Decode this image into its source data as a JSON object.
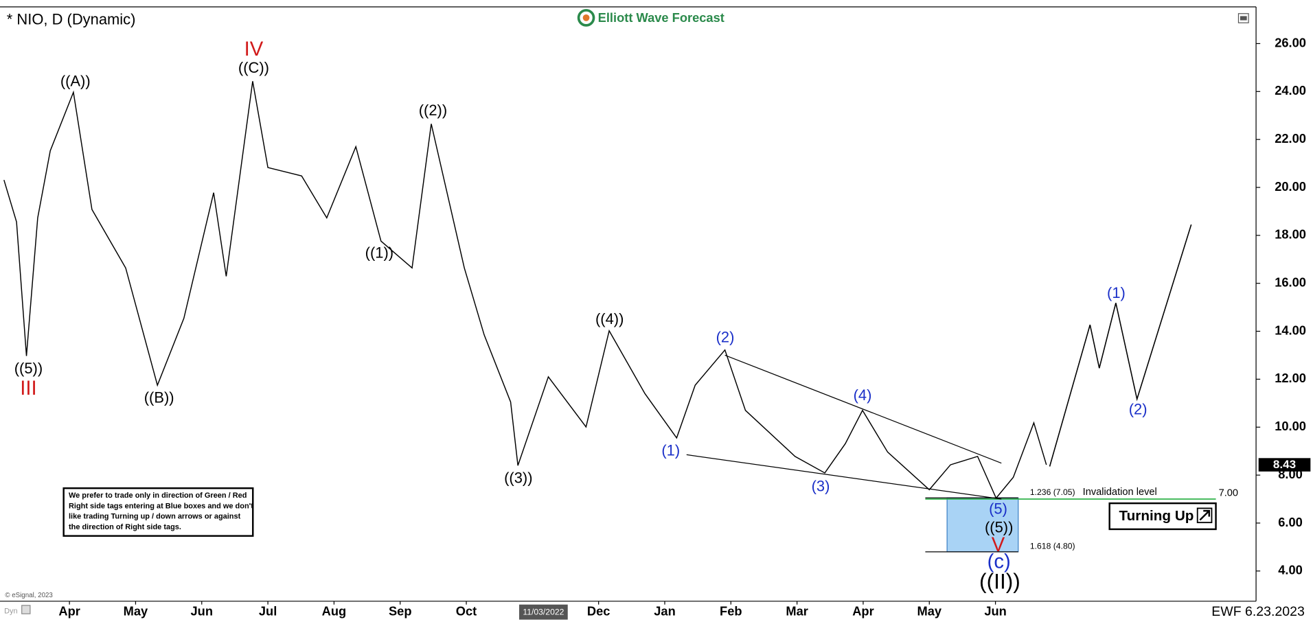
{
  "chart_data": {
    "type": "line",
    "title": "* NIO, D (Dynamic)",
    "brand": "Elliott Wave Forecast",
    "footer": "EWF 6.23.2023",
    "source": "© eSignal, 2023",
    "corner_tag": "Dyn",
    "cursor_label": "11/03/2022",
    "xlim": [
      -0.05,
      18.94
    ],
    "ylim": [
      2.74,
      27.53
    ],
    "xticks": [
      {
        "value": 1,
        "label": "Apr"
      },
      {
        "value": 2,
        "label": "May"
      },
      {
        "value": 3,
        "label": "Jun"
      },
      {
        "value": 4,
        "label": "Jul"
      },
      {
        "value": 5,
        "label": "Aug"
      },
      {
        "value": 6,
        "label": "Sep"
      },
      {
        "value": 7,
        "label": "Oct"
      },
      {
        "value": 9,
        "label": "Dec"
      },
      {
        "value": 10,
        "label": "Jan"
      },
      {
        "value": 11,
        "label": "Feb"
      },
      {
        "value": 12,
        "label": "Mar"
      },
      {
        "value": 13,
        "label": "Apr"
      },
      {
        "value": 14,
        "label": "May"
      },
      {
        "value": 15,
        "label": "Jun"
      }
    ],
    "yticks": [
      {
        "value": 4,
        "label": "4.00"
      },
      {
        "value": 6,
        "label": "6.00"
      },
      {
        "value": 8,
        "label": "8.00"
      },
      {
        "value": 10,
        "label": "10.00"
      },
      {
        "value": 12,
        "label": "12.00"
      },
      {
        "value": 14,
        "label": "14.00"
      },
      {
        "value": 16,
        "label": "16.00"
      },
      {
        "value": 18,
        "label": "18.00"
      },
      {
        "value": 20,
        "label": "20.00"
      },
      {
        "value": 22,
        "label": "22.00"
      },
      {
        "value": 24,
        "label": "24.00"
      },
      {
        "value": 26,
        "label": "26.00"
      }
    ],
    "series": [
      {
        "color": "#000000",
        "x": [
          0.01,
          0.2,
          0.35,
          0.52,
          0.71,
          1.06,
          1.34,
          1.85,
          2.33,
          2.73,
          3.18,
          3.37,
          3.77,
          4.0,
          4.51,
          4.89,
          5.33,
          5.71,
          6.18,
          6.47,
          6.97,
          7.27,
          7.67,
          7.78,
          8.24,
          8.81,
          9.16,
          9.7,
          10.18,
          10.46,
          10.91,
          11.22,
          11.97,
          12.42,
          12.73,
          12.99,
          13.37,
          14.0,
          14.32,
          14.73,
          15.01,
          15.27,
          15.58,
          15.77
        ],
        "values": [
          20.31,
          18.56,
          12.97,
          18.73,
          21.53,
          23.97,
          19.08,
          16.64,
          11.75,
          14.54,
          19.78,
          16.29,
          24.43,
          20.83,
          20.48,
          18.73,
          21.7,
          17.76,
          16.64,
          22.65,
          16.64,
          13.85,
          11.05,
          8.4,
          12.1,
          10.01,
          14.02,
          11.4,
          9.55,
          11.75,
          13.22,
          10.7,
          8.78,
          8.09,
          9.31,
          10.7,
          8.96,
          7.39,
          8.43,
          8.78,
          7.04,
          7.91,
          10.18,
          8.43
        ]
      },
      {
        "color": "#000000",
        "x": [
          15.82,
          16.43,
          16.57,
          16.82,
          17.14,
          17.96
        ],
        "values": [
          8.36,
          14.27,
          12.46,
          15.18,
          11.17,
          18.45
        ]
      }
    ],
    "trendlines": [
      {
        "x": [
          10.91,
          15.09
        ],
        "values": [
          13.0,
          8.5
        ]
      },
      {
        "x": [
          10.33,
          15.09
        ],
        "values": [
          8.85,
          7.0
        ]
      }
    ],
    "last_price": {
      "value": 8.43,
      "label": "8.43"
    },
    "fib_levels": [
      {
        "value": 7.05,
        "label": "1.236 (7.05)"
      },
      {
        "value": 4.8,
        "label": "1.618 (4.80)"
      }
    ],
    "box_color": "#a9d3f5",
    "invalidation": {
      "value": 7,
      "label": "7.00",
      "text": "Invalidation level",
      "color": "#2fb34a"
    },
    "annotations": [
      {
        "text": "((5))",
        "color": "#000000"
      },
      {
        "text": "III",
        "color": "#d11a1a"
      },
      {
        "text": "((A))",
        "color": "#000000"
      },
      {
        "text": "((B))",
        "color": "#000000"
      },
      {
        "text": "IV",
        "color": "#d11a1a"
      },
      {
        "text": "((C))",
        "color": "#000000"
      },
      {
        "text": "((1))",
        "color": "#000000"
      },
      {
        "text": "((2))",
        "color": "#000000"
      },
      {
        "text": "((3))",
        "color": "#000000"
      },
      {
        "text": "((4))",
        "color": "#000000"
      },
      {
        "text": "(1)",
        "color": "#1a2fc8"
      },
      {
        "text": "(2)",
        "color": "#1a2fc8"
      },
      {
        "text": "(3)",
        "color": "#1a2fc8"
      },
      {
        "text": "(4)",
        "color": "#1a2fc8"
      },
      {
        "text": "(5)",
        "color": "#1a2fc8"
      },
      {
        "text": "((5))",
        "color": "#000000"
      },
      {
        "text": "V",
        "color": "#d11a1a"
      },
      {
        "text": "(c)",
        "color": "#1a2fc8"
      },
      {
        "text": "((II))",
        "color": "#000000"
      },
      {
        "text": "(1)",
        "color": "#1a2fc8"
      },
      {
        "text": "(2)",
        "color": "#1a2fc8"
      }
    ],
    "notice": [
      "We prefer to trade only in direction of Green / Red",
      "Right side tags entering at Blue boxes and we don't",
      "like trading Turning up / down arrows or against",
      "the direction of Right side tags."
    ],
    "badge": "Turning Up"
  }
}
